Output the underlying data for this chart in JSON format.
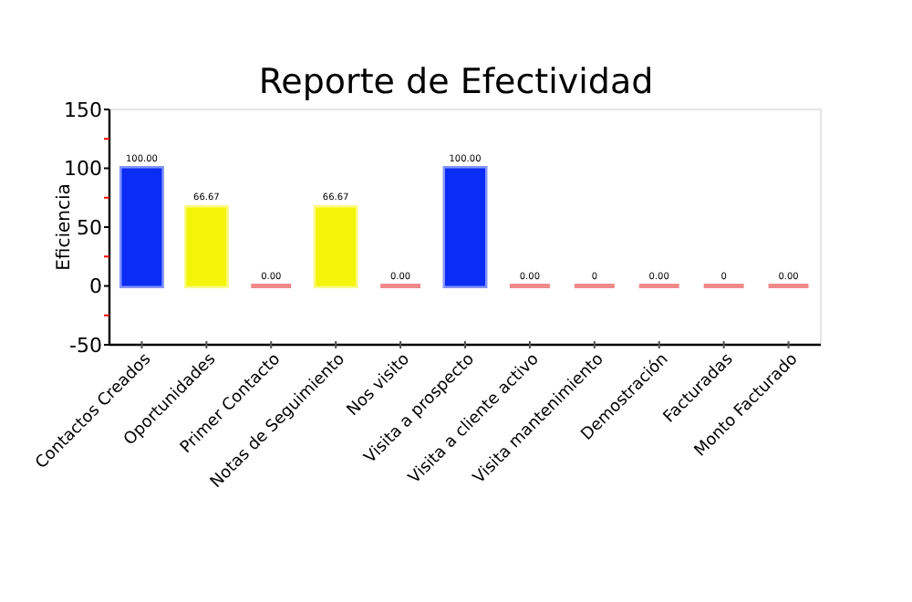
{
  "chart_data": {
    "type": "bar",
    "title": "Reporte de Efectividad",
    "ylabel": "Eficiencia",
    "categories": [
      "Contactos Creados",
      "Oportunidades",
      "Primer Contacto",
      "Notas de Seguimiento",
      "Nos visito",
      "Visita a prospecto",
      "Visita a cliente activo",
      "Visita mantenimiento",
      "Demostración",
      "Facturadas",
      "Monto Facturado"
    ],
    "values": [
      100,
      66.67,
      0,
      66.67,
      0,
      100,
      0,
      0,
      0,
      0,
      0
    ],
    "colors": [
      "#0a2cf5",
      "#f5f50a",
      "#f08a8a",
      "#f5f50a",
      "#f08a8a",
      "#0a2cf5",
      "#f08a8a",
      "#f08a8a",
      "#f08a8a",
      "#f08a8a",
      "#f08a8a"
    ],
    "value_labels": [
      "100.00",
      "66.67",
      "0.00",
      "66.67",
      "0.00",
      "100.00",
      "0.00",
      "0",
      "0.00",
      "0",
      "0.00"
    ],
    "ylim": [
      -50,
      150
    ],
    "yticks": [
      -50,
      {
        "value": -25,
        "label": null
      },
      0,
      {
        "value": 25,
        "label": null
      },
      50,
      {
        "value": 75,
        "label": null
      },
      100,
      {
        "value": 125,
        "label": null
      },
      150
    ],
    "grid": false
  }
}
